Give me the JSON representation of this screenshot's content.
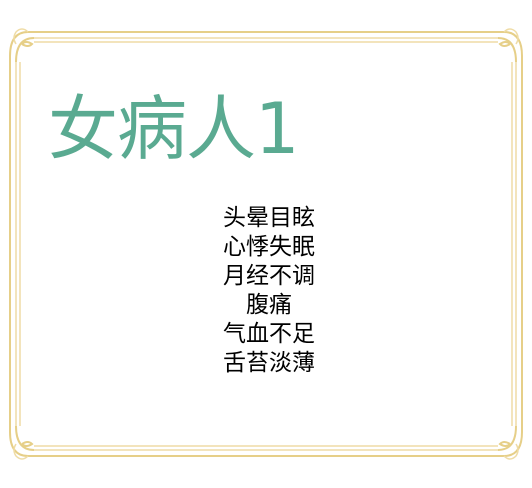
{
  "card": {
    "title": "女病人1",
    "symptoms": [
      "头晕目眩",
      "心悸失眠",
      "月经不调",
      "腹痛",
      "气血不足",
      "舌苔淡薄"
    ]
  },
  "colors": {
    "title": "#5aaa91",
    "frame": "#e6cf88",
    "frame_inner": "#efdca6",
    "text": "#000000",
    "background": "#ffffff"
  }
}
